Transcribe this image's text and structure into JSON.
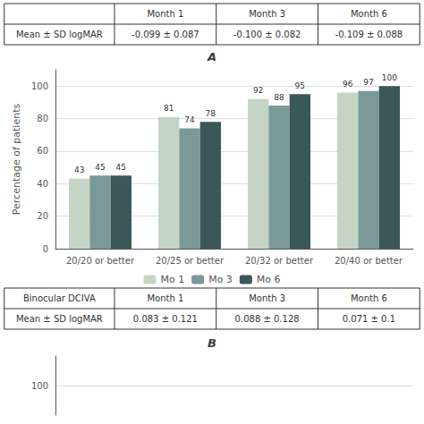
{
  "chart_data": [
    {
      "type": "bar",
      "title": "A",
      "annotations": [
        [
          null,
          "Month 1",
          "Month 3",
          "Month 6"
        ],
        [
          "Mean ± SD logMAR",
          "-0.099 ± 0.087",
          "-0.100 ± 0.082",
          "-0.109 ± 0.088"
        ]
      ],
      "categories": [
        "20/20 or better",
        "20/25 or better",
        "20/32 or better",
        "20/40 or better"
      ],
      "series": [
        {
          "name": "Mo 1",
          "color": "#c5d5c5",
          "values": [
            43,
            81,
            92,
            96
          ]
        },
        {
          "name": "Mo 3",
          "color": "#7a9a9a",
          "values": [
            45,
            74,
            88,
            97
          ]
        },
        {
          "name": "Mo 6",
          "color": "#3a5858",
          "values": [
            45,
            78,
            95,
            100
          ]
        }
      ],
      "ylabel": "Percentage of patients",
      "ylim": [
        0,
        110
      ],
      "yticks": [
        0,
        20,
        40,
        60,
        80,
        100
      ],
      "grid": true,
      "legend": "bottom",
      "data_labels": true
    },
    {
      "type": "line",
      "title": "B",
      "annotations": [
        [
          "Binocular DCIVA",
          "Month 1",
          "Month 3",
          "Month 6"
        ],
        [
          "Mean ± SD logMAR",
          "0.083 ± 0.121",
          "0.088 ± 0.128",
          "0.071 ± 0.1"
        ]
      ],
      "ylim": [
        95,
        105
      ],
      "yticks": [
        100
      ],
      "grid": true,
      "tick_labels": "y"
    }
  ]
}
